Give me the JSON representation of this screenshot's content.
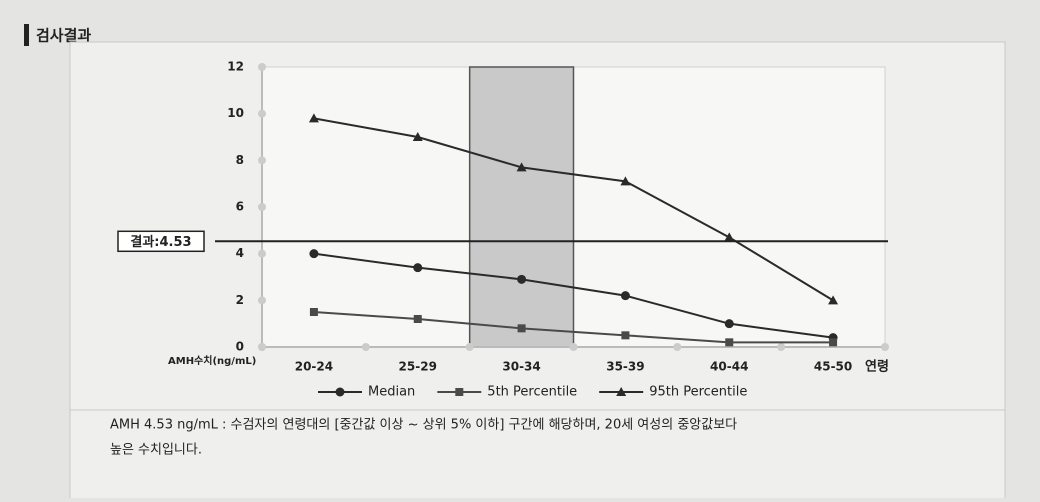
{
  "header": {
    "title": "검사결과"
  },
  "chart_data": {
    "type": "line",
    "categories": [
      "20-24",
      "25-29",
      "30-34",
      "35-39",
      "40-44",
      "45-50"
    ],
    "series": [
      {
        "name": "Median",
        "color": "#2a2a2a",
        "marker": "circle",
        "values": [
          4.0,
          3.4,
          2.9,
          2.2,
          1.0,
          0.4
        ]
      },
      {
        "name": "5th Percentile",
        "color": "#4a4a4a",
        "marker": "square",
        "values": [
          1.5,
          1.2,
          0.8,
          0.5,
          0.2,
          0.2
        ]
      },
      {
        "name": "95th Percentile",
        "color": "#2a2a2a",
        "marker": "triangle",
        "values": [
          9.8,
          9.0,
          7.7,
          7.1,
          4.7,
          2.0
        ]
      }
    ],
    "ylim": [
      0,
      12
    ],
    "yticks": [
      0,
      2,
      4,
      6,
      8,
      10,
      12
    ],
    "ylabel": "AMH수치(ng/mL)",
    "xlabel": "연령",
    "highlight_category": "30-34",
    "reference": {
      "value": 4.53,
      "label": "결과:4.53"
    },
    "grid": false
  },
  "footer": {
    "lines": [
      "AMH  4.53 ng/mL : 수검자의 연령대의 [중간값 이상 ~ 상위 5% 이하] 구간에 해당하며, 20세 여성의 중앙값보다",
      "높은 수치입니다."
    ]
  }
}
